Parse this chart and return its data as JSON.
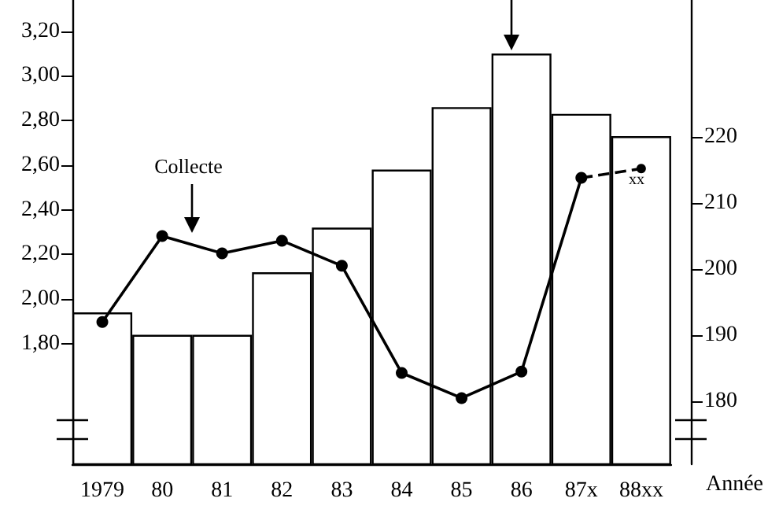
{
  "chart_data": {
    "type": "bar",
    "categories": [
      "1979",
      "80",
      "81",
      "82",
      "83",
      "84",
      "85",
      "86",
      "87x",
      "88xx"
    ],
    "xlabel": "Année",
    "series": [
      {
        "color": "#ffffff",
        "values": [
          1.94,
          1.84,
          1.84,
          2.12,
          2.32,
          2.58,
          2.86,
          3.1,
          2.83,
          2.73
        ]
      },
      {
        "type": "line",
        "axis": "y2",
        "color": "#000000",
        "line_style": "solid",
        "marker": "circle",
        "values": [
          192,
          205,
          202.4,
          204.3,
          200.5,
          184.3,
          180.5,
          184.5,
          213.8,
          null
        ]
      },
      {
        "type": "line",
        "axis": "y2",
        "color": "#000000",
        "line_style": "dashed",
        "marker": "circle",
        "values": [
          null,
          null,
          null,
          null,
          null,
          null,
          null,
          null,
          213.8,
          215.2
        ]
      }
    ],
    "ylim": [
      1.26,
      3.34
    ],
    "yticks": [
      {
        "value": 1.8,
        "label": "1,80"
      },
      {
        "value": 2.0,
        "label": "2,00"
      },
      {
        "value": 2.2,
        "label": "2,20"
      },
      {
        "value": 2.4,
        "label": "2,40"
      },
      {
        "value": 2.6,
        "label": "2,60"
      },
      {
        "value": 2.8,
        "label": "2,80"
      },
      {
        "value": 3.0,
        "label": "3,00"
      },
      {
        "value": 3.2,
        "label": "3,20"
      }
    ],
    "y2lim": [
      170.5,
      240.7
    ],
    "y2ticks": [
      180,
      190,
      200,
      210,
      220
    ],
    "annotations": [
      "Collecte",
      "xx"
    ],
    "grid": false
  }
}
